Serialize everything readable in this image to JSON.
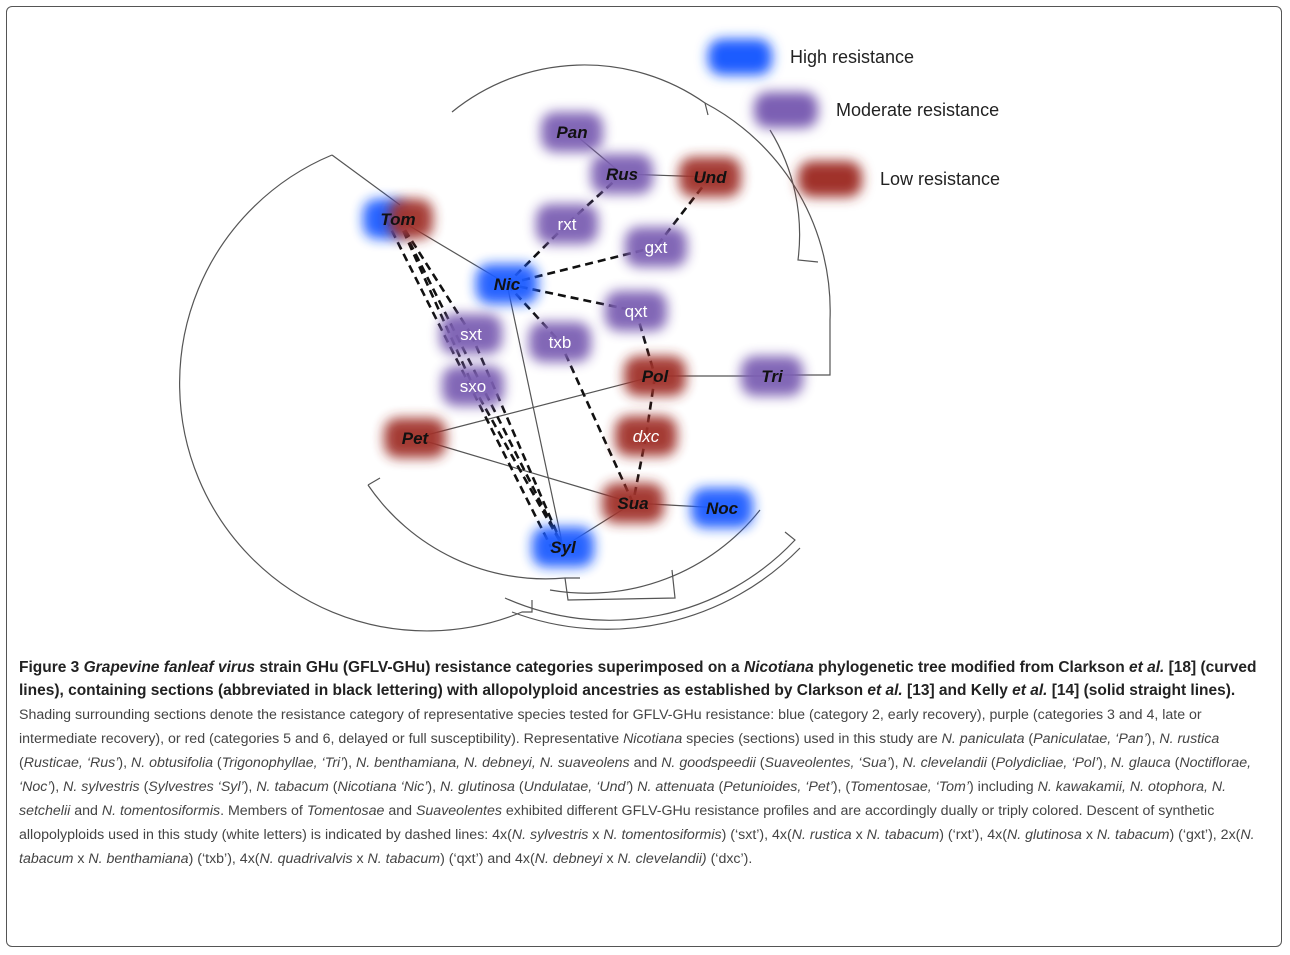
{
  "colors": {
    "high": "#1a5cff",
    "moderate": "#7b5fb3",
    "low": "#a0332a",
    "line": "#555555"
  },
  "legend": [
    {
      "label": "High resistance",
      "level": "high"
    },
    {
      "label": "Moderate resistance",
      "level": "moderate"
    },
    {
      "label": "Low resistance",
      "level": "low"
    }
  ],
  "sections": [
    {
      "id": "Pan",
      "label": "Pan",
      "levels": [
        "moderate"
      ]
    },
    {
      "id": "Rus",
      "label": "Rus",
      "levels": [
        "moderate"
      ]
    },
    {
      "id": "Und",
      "label": "Und",
      "levels": [
        "low"
      ]
    },
    {
      "id": "Tom",
      "label": "Tom",
      "levels": [
        "high",
        "low"
      ]
    },
    {
      "id": "Nic",
      "label": "Nic",
      "levels": [
        "high"
      ]
    },
    {
      "id": "Pol",
      "label": "Pol",
      "levels": [
        "low"
      ]
    },
    {
      "id": "Tri",
      "label": "Tri",
      "levels": [
        "moderate"
      ]
    },
    {
      "id": "Pet",
      "label": "Pet",
      "levels": [
        "low"
      ]
    },
    {
      "id": "Sua",
      "label": "Sua",
      "levels": [
        "low"
      ]
    },
    {
      "id": "Noc",
      "label": "Noc",
      "levels": [
        "high"
      ]
    },
    {
      "id": "Syl",
      "label": "Syl",
      "levels": [
        "high"
      ]
    }
  ],
  "synthetics": [
    {
      "id": "rxt",
      "label": "rxt",
      "levels": [
        "moderate"
      ],
      "italic": false
    },
    {
      "id": "gxt",
      "label": "gxt",
      "levels": [
        "moderate"
      ],
      "italic": false
    },
    {
      "id": "qxt",
      "label": "qxt",
      "levels": [
        "moderate"
      ],
      "italic": false
    },
    {
      "id": "txb",
      "label": "txb",
      "levels": [
        "moderate"
      ],
      "italic": false
    },
    {
      "id": "sxt",
      "label": "sxt",
      "levels": [
        "moderate"
      ],
      "italic": false
    },
    {
      "id": "sxo",
      "label": "sxo",
      "levels": [
        "moderate"
      ],
      "italic": false
    },
    {
      "id": "dxc",
      "label": "dxc",
      "levels": [
        "low"
      ],
      "italic": true
    }
  ],
  "ancestry_lines": [
    [
      "Pan",
      "Rus"
    ],
    [
      "Rus",
      "Und"
    ],
    [
      "Tom",
      "Nic"
    ],
    [
      "Nic",
      "Syl"
    ],
    [
      "Pol",
      "Tri"
    ],
    [
      "Pet",
      "Pol"
    ],
    [
      "Pet",
      "Sua"
    ],
    [
      "Sua",
      "Noc"
    ],
    [
      "Syl",
      "Sua"
    ]
  ],
  "synthetic_descent": [
    [
      "Rus",
      "rxt"
    ],
    [
      "rxt",
      "Nic"
    ],
    [
      "Und",
      "gxt"
    ],
    [
      "gxt",
      "Nic"
    ],
    [
      "Nic",
      "qxt"
    ],
    [
      "qxt",
      "Pol"
    ],
    [
      "Nic",
      "txb"
    ],
    [
      "txb",
      "Sua"
    ],
    [
      "Pol",
      "dxc"
    ],
    [
      "dxc",
      "Sua"
    ],
    [
      "Tom",
      "sxt"
    ],
    [
      "sxt",
      "Syl"
    ],
    [
      "Tom",
      "sxo"
    ],
    [
      "sxo",
      "Syl"
    ],
    [
      "Tom",
      "Syl"
    ]
  ],
  "caption": {
    "title_runs": [
      {
        "t": "Figure 3 ",
        "i": false
      },
      {
        "t": "Grapevine fanleaf virus",
        "i": true
      },
      {
        "t": " strain GHu (GFLV-GHu) resistance categories superimposed on a ",
        "i": false
      },
      {
        "t": "Nicotiana",
        "i": true
      },
      {
        "t": " phylogenetic tree modified from Clarkson ",
        "i": false
      },
      {
        "t": "et al.",
        "i": true
      },
      {
        "t": " [18] (curved lines), containing sections (abbreviated in black lettering) with allopolyploid ancestries as established by Clarkson ",
        "i": false
      },
      {
        "t": "et al.",
        "i": true
      },
      {
        "t": " [13] and Kelly ",
        "i": false
      },
      {
        "t": "et al.",
        "i": true
      },
      {
        "t": " [14] (solid straight lines).",
        "i": false
      }
    ],
    "body_runs": [
      {
        "t": " Shading surrounding sections denote the resistance category of representative species tested for GFLV-GHu resistance: blue (category 2, early recovery), purple (categories 3 and 4, late or intermediate recovery), or red (categories 5 and 6, delayed or full susceptibility). Representative ",
        "i": false
      },
      {
        "t": "Nicotiana",
        "i": true
      },
      {
        "t": " species (sections) used in this study are ",
        "i": false
      },
      {
        "t": "N. paniculata",
        "i": true
      },
      {
        "t": " (",
        "i": false
      },
      {
        "t": "Paniculatae, ‘Pan’",
        "i": true
      },
      {
        "t": "), ",
        "i": false
      },
      {
        "t": "N. rustica",
        "i": true
      },
      {
        "t": " (",
        "i": false
      },
      {
        "t": "Rusticae, ‘Rus’",
        "i": true
      },
      {
        "t": "), ",
        "i": false
      },
      {
        "t": "N. obtusifolia",
        "i": true
      },
      {
        "t": " (",
        "i": false
      },
      {
        "t": "Trigonophyllae, ‘Tri’",
        "i": true
      },
      {
        "t": "), ",
        "i": false
      },
      {
        "t": "N. benthamiana, N. debneyi, N. suaveolens",
        "i": true
      },
      {
        "t": " and ",
        "i": false
      },
      {
        "t": "N. goodspeedii",
        "i": true
      },
      {
        "t": " (",
        "i": false
      },
      {
        "t": "Suaveolentes, ‘Sua’",
        "i": true
      },
      {
        "t": "), ",
        "i": false
      },
      {
        "t": "N. clevelandii",
        "i": true
      },
      {
        "t": " (",
        "i": false
      },
      {
        "t": "Polydicliae, ‘Pol’",
        "i": true
      },
      {
        "t": "), ",
        "i": false
      },
      {
        "t": "N. glauca",
        "i": true
      },
      {
        "t": " (",
        "i": false
      },
      {
        "t": "Noctiflorae, ‘Noc’",
        "i": true
      },
      {
        "t": "), ",
        "i": false
      },
      {
        "t": "N. sylvestris",
        "i": true
      },
      {
        "t": " (",
        "i": false
      },
      {
        "t": "Sylvestres ‘Syl’",
        "i": true
      },
      {
        "t": "), ",
        "i": false
      },
      {
        "t": "N. tabacum",
        "i": true
      },
      {
        "t": " (",
        "i": false
      },
      {
        "t": "Nicotiana ‘Nic’",
        "i": true
      },
      {
        "t": "), ",
        "i": false
      },
      {
        "t": "N. glutinosa",
        "i": true
      },
      {
        "t": " (",
        "i": false
      },
      {
        "t": "Undulatae, ‘Und’",
        "i": true
      },
      {
        "t": ") ",
        "i": false
      },
      {
        "t": "N. attenuata",
        "i": true
      },
      {
        "t": " (",
        "i": false
      },
      {
        "t": "Petunioides, ‘Pet’",
        "i": true
      },
      {
        "t": "), (",
        "i": false
      },
      {
        "t": "Tomentosae, ‘Tom’",
        "i": true
      },
      {
        "t": ") including ",
        "i": false
      },
      {
        "t": "N. kawakamii, N. otophora, N. setchelii",
        "i": true
      },
      {
        "t": " and ",
        "i": false
      },
      {
        "t": "N. tomentosiformis",
        "i": true
      },
      {
        "t": ". Members of ",
        "i": false
      },
      {
        "t": "Tomentosae",
        "i": true
      },
      {
        "t": " and ",
        "i": false
      },
      {
        "t": "Suaveolentes",
        "i": true
      },
      {
        "t": " exhibited different GFLV-GHu resistance profiles and are accordingly dually or triply colored. Descent of synthetic allopolyploids used in this study (white letters) is indicated by dashed lines: 4x(",
        "i": false
      },
      {
        "t": "N. sylvestris",
        "i": true
      },
      {
        "t": " x ",
        "i": false
      },
      {
        "t": "N. tomentosiformis",
        "i": true
      },
      {
        "t": ") (‘sxt’), 4x(",
        "i": false
      },
      {
        "t": "N. rustica",
        "i": true
      },
      {
        "t": " x ",
        "i": false
      },
      {
        "t": "N. tabacum",
        "i": true
      },
      {
        "t": ") (‘rxt’), 4x(",
        "i": false
      },
      {
        "t": "N. glutinosa",
        "i": true
      },
      {
        "t": " x ",
        "i": false
      },
      {
        "t": "N. tabacum",
        "i": true
      },
      {
        "t": ") (‘gxt’), 2x(",
        "i": false
      },
      {
        "t": "N. tabacum",
        "i": true
      },
      {
        "t": " x ",
        "i": false
      },
      {
        "t": "N. benthamiana",
        "i": true
      },
      {
        "t": ") (‘txb’), 4x(",
        "i": false
      },
      {
        "t": "N. quadrivalvis",
        "i": true
      },
      {
        "t": " x ",
        "i": false
      },
      {
        "t": "N. tabacum",
        "i": true
      },
      {
        "t": ") (‘qxt’) and 4x(",
        "i": false
      },
      {
        "t": "N. debneyi",
        "i": true
      },
      {
        "t": " x ",
        "i": false
      },
      {
        "t": "N. clevelandii)",
        "i": true
      },
      {
        "t": " (‘dxc’).",
        "i": false
      }
    ]
  }
}
